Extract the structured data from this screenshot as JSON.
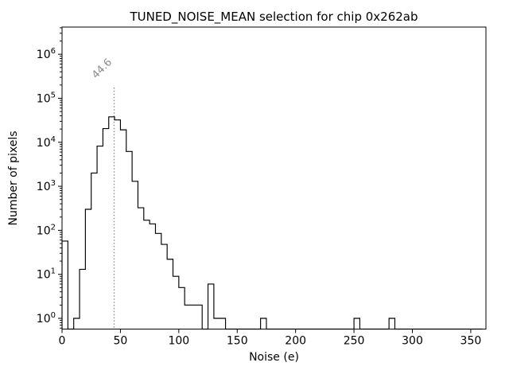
{
  "figure": {
    "background": "#ffffff",
    "frame_color": "#000000"
  },
  "chart_data": {
    "type": "bar",
    "subtype": "step-histogram",
    "title": "TUNED_NOISE_MEAN selection for chip 0x262ab",
    "xlabel": "Noise (e)",
    "ylabel": "Number of pixels",
    "yscale": "log",
    "grid": false,
    "legend_position": "none",
    "xlim": [
      0,
      363
    ],
    "ylim": [
      0.57,
      4150000
    ],
    "xticks": [
      0,
      50,
      100,
      150,
      200,
      250,
      300,
      350
    ],
    "ytick_exponents": [
      0,
      1,
      2,
      3,
      4,
      5,
      6
    ],
    "bin_start": 0,
    "bin_width": 5,
    "counts": [
      57,
      0,
      1,
      13,
      300,
      2000,
      8200,
      20500,
      37800,
      32200,
      19200,
      6200,
      1300,
      325,
      170,
      140,
      85,
      48,
      22,
      9,
      5,
      2,
      2,
      2,
      0,
      6,
      1,
      1,
      0,
      0,
      0,
      0,
      0,
      0,
      1,
      0,
      0,
      0,
      0,
      0,
      0,
      0,
      0,
      0,
      0,
      0,
      0,
      0,
      0,
      0,
      1,
      0,
      0,
      0,
      0,
      0,
      1,
      0,
      0,
      0,
      0,
      0,
      0,
      0,
      0,
      0,
      0,
      0,
      0,
      0,
      0,
      0
    ],
    "line_color": "#000000",
    "vline": {
      "x": 44.6,
      "label": "44.6",
      "color": "#8a8a8a",
      "style": "dotted",
      "label_rotation_deg": 45
    }
  }
}
